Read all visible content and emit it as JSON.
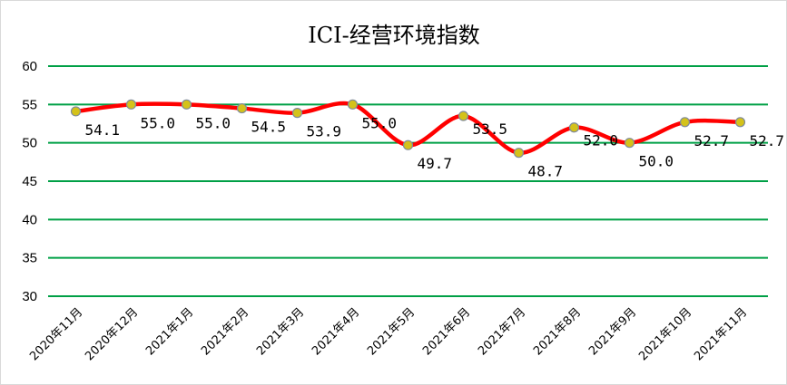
{
  "chart_data": {
    "type": "line",
    "title": "ICI-经营环境指数",
    "xlabel": "",
    "ylabel": "",
    "categories": [
      "2020年11月",
      "2020年12月",
      "2021年1月",
      "2021年2月",
      "2021年3月",
      "2021年4月",
      "2021年5月",
      "2021年6月",
      "2021年7月",
      "2021年8月",
      "2021年9月",
      "2021年10月",
      "2021年11月"
    ],
    "series": [
      {
        "values": [
          54.1,
          55.0,
          55.0,
          54.5,
          53.9,
          55.0,
          49.7,
          53.5,
          48.7,
          52.0,
          50.0,
          52.7,
          52.7
        ],
        "labels": [
          "54.1",
          "55.0",
          "55.0",
          "54.5",
          "53.9",
          "55.0",
          "49.7",
          "53.5",
          "48.7",
          "52.0",
          "50.0",
          "52.7",
          "52.7"
        ]
      }
    ],
    "ylim": [
      30,
      60
    ],
    "yticks": [
      "30",
      "35",
      "40",
      "45",
      "50",
      "55",
      "60"
    ],
    "grid": true,
    "smooth": true,
    "legend": "none",
    "colors": {
      "line": "#ff0000",
      "marker_fill": "#d4c21a",
      "marker_edge": "#7f8a99",
      "grid": "#00a046"
    }
  }
}
